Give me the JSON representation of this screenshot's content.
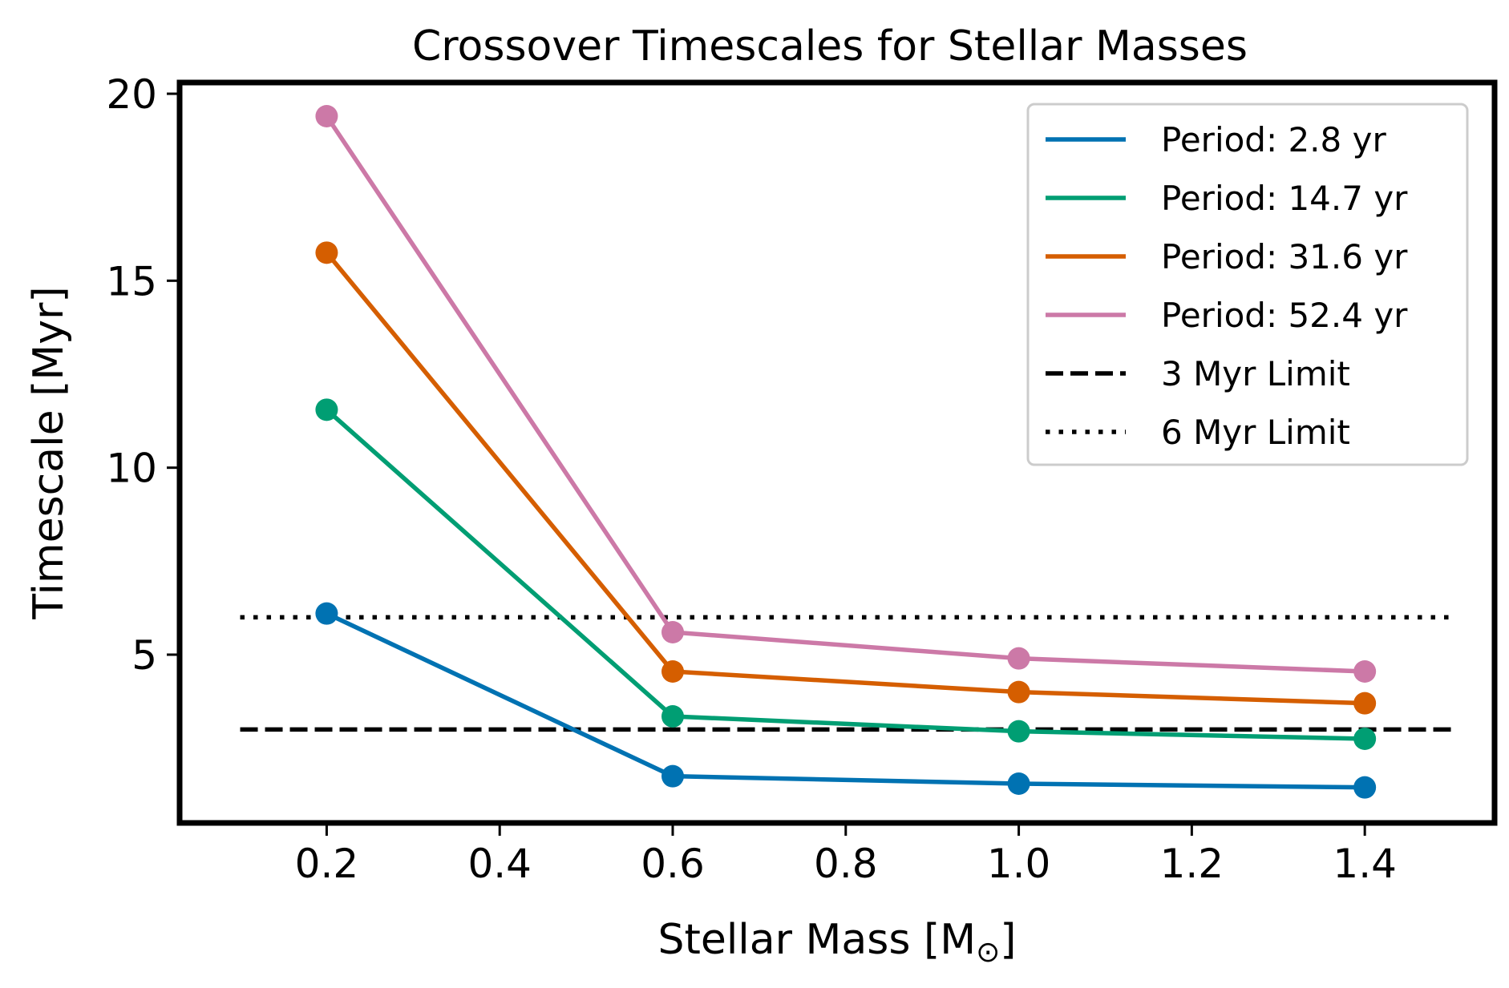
{
  "chart_data": {
    "type": "line",
    "title": "Crossover Timescales for Stellar Masses",
    "xlabel": "Stellar Mass [M",
    "xlabel_symbol": "⊙",
    "xlabel_close": "]",
    "ylabel": "Timescale [Myr]",
    "xlim": [
      0.03,
      1.55
    ],
    "ylim": [
      0.5,
      20.3
    ],
    "x_ticks": [
      0.2,
      0.4,
      0.6,
      0.8,
      1.0,
      1.2,
      1.4
    ],
    "x_tick_labels": [
      "0.2",
      "0.4",
      "0.6",
      "0.8",
      "1.0",
      "1.2",
      "1.4"
    ],
    "y_ticks": [
      5,
      10,
      15,
      20
    ],
    "y_tick_labels": [
      "5",
      "10",
      "15",
      "20"
    ],
    "grid": false,
    "legend_position": "top-right",
    "x": [
      0.2,
      0.6,
      1.0,
      1.4
    ],
    "series": [
      {
        "name": "Period: 2.8 yr",
        "color": "#0072b2",
        "values": [
          6.1,
          1.75,
          1.55,
          1.45
        ]
      },
      {
        "name": "Period: 14.7 yr",
        "color": "#009e73",
        "values": [
          11.55,
          3.35,
          2.95,
          2.75
        ]
      },
      {
        "name": "Period: 31.6 yr",
        "color": "#d55e00",
        "values": [
          15.75,
          4.55,
          4.0,
          3.7
        ]
      },
      {
        "name": "Period: 52.4 yr",
        "color": "#cc79a7",
        "values": [
          19.4,
          5.6,
          4.9,
          4.55
        ]
      }
    ],
    "reference_lines": [
      {
        "name": "3 Myr Limit",
        "y": 3,
        "x_range": [
          0.1,
          1.5
        ],
        "style": "dashed",
        "color": "#000000"
      },
      {
        "name": "6 Myr Limit",
        "y": 6,
        "x_range": [
          0.1,
          1.5
        ],
        "style": "dotted",
        "color": "#000000"
      }
    ]
  }
}
